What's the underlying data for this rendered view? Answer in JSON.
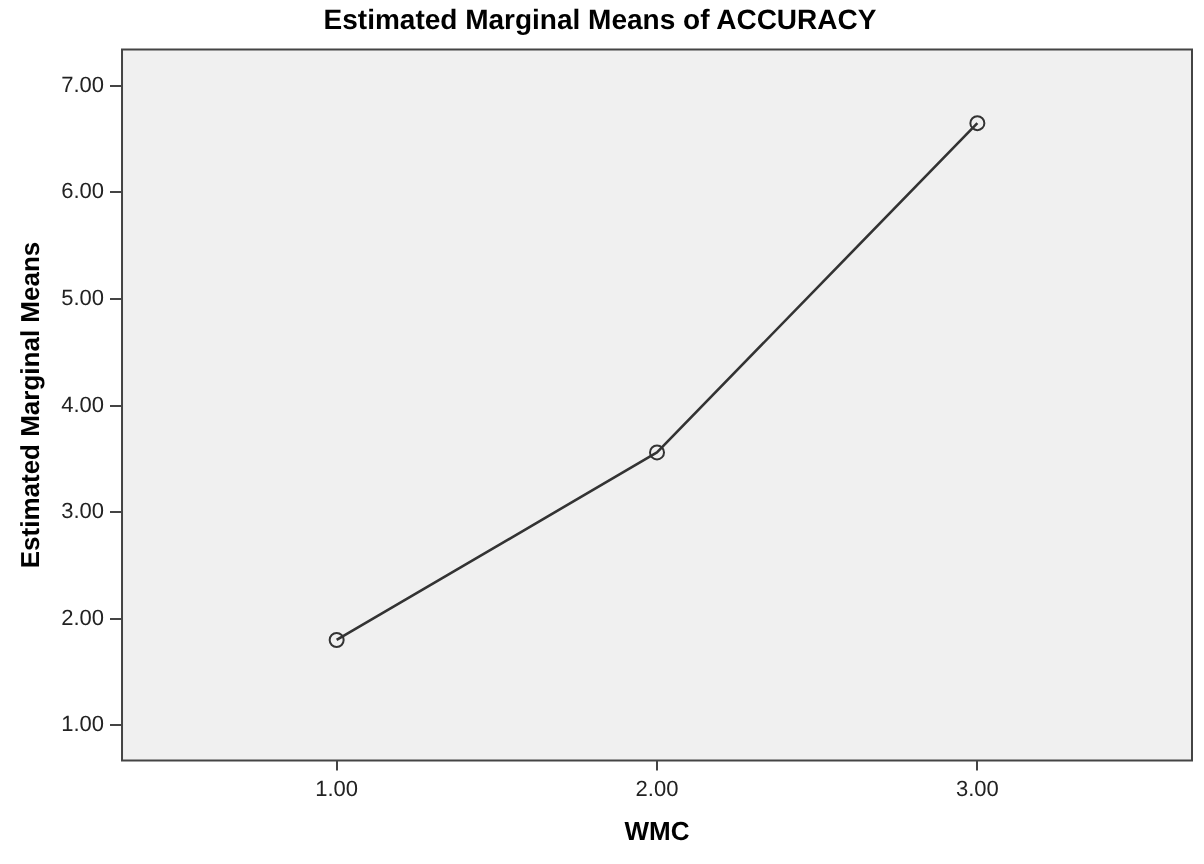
{
  "chart_data": {
    "type": "line",
    "title": "Estimated Marginal Means of ACCURACY",
    "xlabel": "WMC",
    "ylabel": "Estimated Marginal Means",
    "x": [
      1,
      2,
      3
    ],
    "series": [
      {
        "color": "#333333",
        "values": [
          1.8,
          3.56,
          6.65
        ]
      }
    ],
    "xlim": [
      0.33,
      3.67
    ],
    "xticks": [
      {
        "value": 1,
        "label": "1.00"
      },
      {
        "value": 2,
        "label": "2.00"
      },
      {
        "value": 3,
        "label": "3.00"
      }
    ],
    "ylim": [
      0.67,
      7.34
    ],
    "yticks": [
      {
        "value": 1,
        "label": "1.00"
      },
      {
        "value": 2,
        "label": "2.00"
      },
      {
        "value": 3,
        "label": "3.00"
      },
      {
        "value": 4,
        "label": "4.00"
      },
      {
        "value": 5,
        "label": "5.00"
      },
      {
        "value": 6,
        "label": "6.00"
      },
      {
        "value": 7,
        "label": "7.00"
      }
    ],
    "grid": false,
    "legend": false,
    "marker": "circle",
    "line_style": "solid"
  }
}
